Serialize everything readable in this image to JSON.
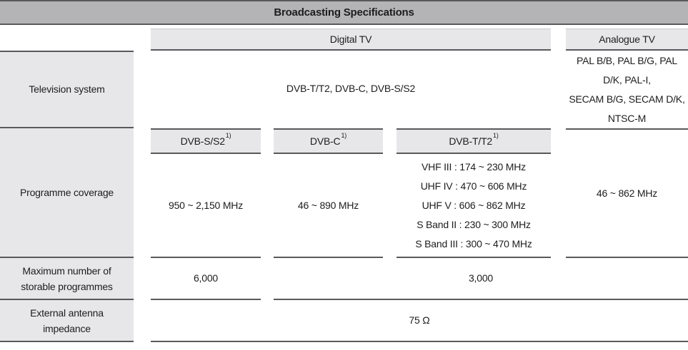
{
  "title": "Broadcasting Specifications",
  "columns": {
    "digital": "Digital TV",
    "analogue": "Analogue TV"
  },
  "rows": {
    "television_system": {
      "label": "Television system",
      "digital": "DVB-T/T2, DVB-C, DVB-S/S2",
      "analogue_lines": [
        "PAL B/B, PAL B/G, PAL",
        "D/K, PAL-I,",
        "SECAM B/G, SECAM D/K,",
        "NTSC-M"
      ]
    },
    "programme_coverage": {
      "label": "Programme coverage",
      "subheaders": [
        {
          "name": "DVB-S/S2",
          "footnote": "1)"
        },
        {
          "name": "DVB-C",
          "footnote": "1)"
        },
        {
          "name": "DVB-T/T2",
          "footnote": "1)"
        }
      ],
      "dvb_s_s2": "950 ~ 2,150 MHz",
      "dvb_c": "46 ~ 890 MHz",
      "dvb_t_t2_lines": [
        "VHF III : 174 ~ 230 MHz",
        "UHF IV : 470 ~ 606 MHz",
        "UHF V : 606 ~ 862 MHz",
        "S Band II : 230 ~ 300 MHz",
        "S Band III : 300 ~ 470 MHz"
      ],
      "analogue": "46 ~ 862 MHz"
    },
    "max_programmes": {
      "label_lines": [
        "Maximum number of",
        "storable programmes"
      ],
      "dvb_s_s2": "6,000",
      "others": "3,000"
    },
    "antenna_impedance": {
      "label_lines": [
        "External antenna",
        "impedance"
      ],
      "value": "75 Ω"
    }
  },
  "colors": {
    "title_bar": "#b4b4b6",
    "cell_gray": "#e7e7e9",
    "border": "#59595c",
    "text": "#1d1d1f"
  }
}
